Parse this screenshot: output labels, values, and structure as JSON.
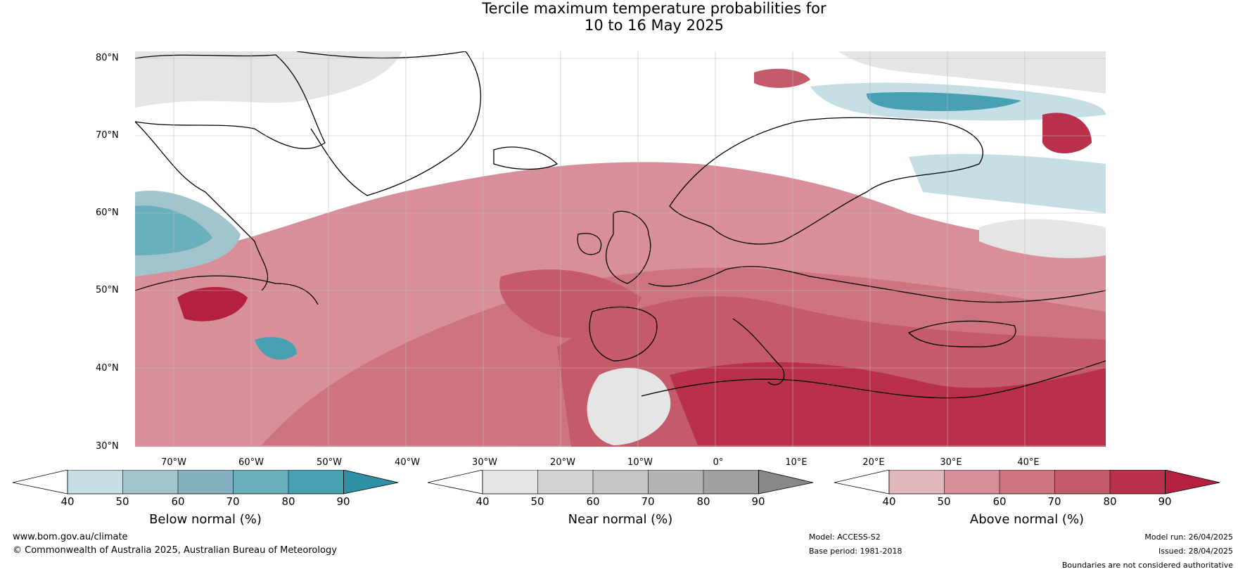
{
  "title": {
    "line1": "Tercile maximum temperature probabilities for",
    "line2": "10 to 16 May 2025"
  },
  "map": {
    "lat_labels": [
      "80°N",
      "70°N",
      "60°N",
      "50°N",
      "40°N",
      "30°N"
    ],
    "lon_labels": [
      "70°W",
      "60°W",
      "50°W",
      "40°W",
      "30°W",
      "20°W",
      "10°W",
      "0°",
      "10°E",
      "20°E",
      "30°E",
      "40°E"
    ],
    "colors": {
      "below": [
        "#c6dfe6",
        "#a2c4cc",
        "#84b0bf",
        "#6aafbc",
        "#48a0b3",
        "#2e8fa5"
      ],
      "near": [
        "#e5e5e5",
        "#d2d2d2",
        "#c6c6c6",
        "#b4b4b4",
        "#a0a0a0",
        "#888888"
      ],
      "above": [
        "#e2b6bd",
        "#d88f99",
        "#cd7480",
        "#c45a6a",
        "#b8304a",
        "#b52040"
      ],
      "coastline": "#000000",
      "borders": "#777777"
    }
  },
  "colorbars": [
    {
      "id": "below",
      "label": "Below normal (%)",
      "ticks": [
        "40",
        "50",
        "60",
        "70",
        "80",
        "90"
      ]
    },
    {
      "id": "near",
      "label": "Near normal (%)",
      "ticks": [
        "40",
        "50",
        "60",
        "70",
        "80",
        "90"
      ]
    },
    {
      "id": "above",
      "label": "Above normal (%)",
      "ticks": [
        "40",
        "50",
        "60",
        "70",
        "80",
        "90"
      ]
    }
  ],
  "footer": {
    "website": "www.bom.gov.au/climate",
    "copyright": "© Commonwealth of Australia 2025, Australian Bureau of Meteorology",
    "model": "Model: ACCESS-S2",
    "base_period": "Base period: 1981-2018",
    "model_run": "Model run: 26/04/2025",
    "issued": "Issued: 28/04/2025",
    "disclaimer": "Boundaries are not considered authoritative"
  }
}
